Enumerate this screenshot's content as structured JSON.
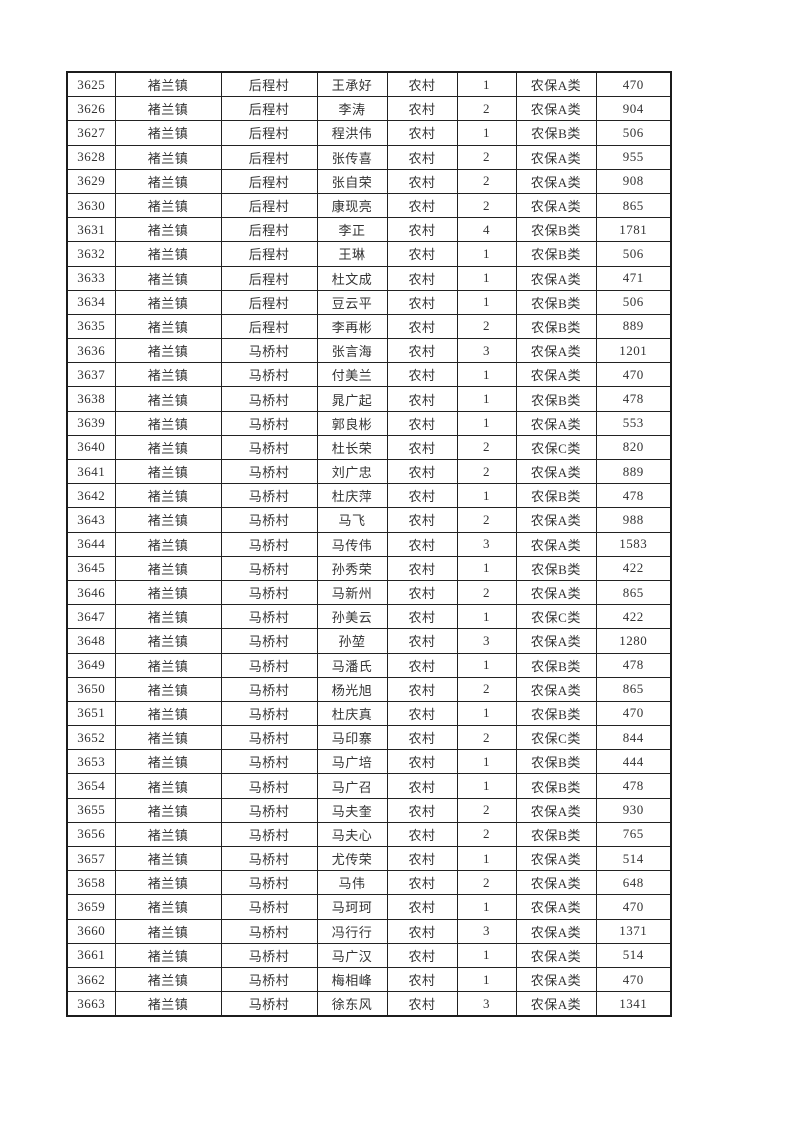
{
  "colors": {
    "background": "#ffffff",
    "border": "#1c1c1c",
    "text": "#333333"
  },
  "table": {
    "column_names": [
      "serial-no",
      "town",
      "village",
      "person-name",
      "household-type",
      "person-count",
      "insurance-class",
      "amount"
    ],
    "rows": [
      [
        "3625",
        "褚兰镇",
        "后程村",
        "王承好",
        "农村",
        "1",
        "农保A类",
        "470"
      ],
      [
        "3626",
        "褚兰镇",
        "后程村",
        "李涛",
        "农村",
        "2",
        "农保A类",
        "904"
      ],
      [
        "3627",
        "褚兰镇",
        "后程村",
        "程洪伟",
        "农村",
        "1",
        "农保B类",
        "506"
      ],
      [
        "3628",
        "褚兰镇",
        "后程村",
        "张传喜",
        "农村",
        "2",
        "农保A类",
        "955"
      ],
      [
        "3629",
        "褚兰镇",
        "后程村",
        "张自荣",
        "农村",
        "2",
        "农保A类",
        "908"
      ],
      [
        "3630",
        "褚兰镇",
        "后程村",
        "康现亮",
        "农村",
        "2",
        "农保A类",
        "865"
      ],
      [
        "3631",
        "褚兰镇",
        "后程村",
        "李正",
        "农村",
        "4",
        "农保B类",
        "1781"
      ],
      [
        "3632",
        "褚兰镇",
        "后程村",
        "王琳",
        "农村",
        "1",
        "农保B类",
        "506"
      ],
      [
        "3633",
        "褚兰镇",
        "后程村",
        "杜文成",
        "农村",
        "1",
        "农保A类",
        "471"
      ],
      [
        "3634",
        "褚兰镇",
        "后程村",
        "豆云平",
        "农村",
        "1",
        "农保B类",
        "506"
      ],
      [
        "3635",
        "褚兰镇",
        "后程村",
        "李再彬",
        "农村",
        "2",
        "农保B类",
        "889"
      ],
      [
        "3636",
        "褚兰镇",
        "马桥村",
        "张言海",
        "农村",
        "3",
        "农保A类",
        "1201"
      ],
      [
        "3637",
        "褚兰镇",
        "马桥村",
        "付美兰",
        "农村",
        "1",
        "农保A类",
        "470"
      ],
      [
        "3638",
        "褚兰镇",
        "马桥村",
        "晁广起",
        "农村",
        "1",
        "农保B类",
        "478"
      ],
      [
        "3639",
        "褚兰镇",
        "马桥村",
        "郭良彬",
        "农村",
        "1",
        "农保A类",
        "553"
      ],
      [
        "3640",
        "褚兰镇",
        "马桥村",
        "杜长荣",
        "农村",
        "2",
        "农保C类",
        "820"
      ],
      [
        "3641",
        "褚兰镇",
        "马桥村",
        "刘广忠",
        "农村",
        "2",
        "农保A类",
        "889"
      ],
      [
        "3642",
        "褚兰镇",
        "马桥村",
        "杜庆萍",
        "农村",
        "1",
        "农保B类",
        "478"
      ],
      [
        "3643",
        "褚兰镇",
        "马桥村",
        "马飞",
        "农村",
        "2",
        "农保A类",
        "988"
      ],
      [
        "3644",
        "褚兰镇",
        "马桥村",
        "马传伟",
        "农村",
        "3",
        "农保A类",
        "1583"
      ],
      [
        "3645",
        "褚兰镇",
        "马桥村",
        "孙秀荣",
        "农村",
        "1",
        "农保B类",
        "422"
      ],
      [
        "3646",
        "褚兰镇",
        "马桥村",
        "马新州",
        "农村",
        "2",
        "农保A类",
        "865"
      ],
      [
        "3647",
        "褚兰镇",
        "马桥村",
        "孙美云",
        "农村",
        "1",
        "农保C类",
        "422"
      ],
      [
        "3648",
        "褚兰镇",
        "马桥村",
        "孙堃",
        "农村",
        "3",
        "农保A类",
        "1280"
      ],
      [
        "3649",
        "褚兰镇",
        "马桥村",
        "马潘氏",
        "农村",
        "1",
        "农保B类",
        "478"
      ],
      [
        "3650",
        "褚兰镇",
        "马桥村",
        "杨光旭",
        "农村",
        "2",
        "农保A类",
        "865"
      ],
      [
        "3651",
        "褚兰镇",
        "马桥村",
        "杜庆真",
        "农村",
        "1",
        "农保B类",
        "470"
      ],
      [
        "3652",
        "褚兰镇",
        "马桥村",
        "马印寨",
        "农村",
        "2",
        "农保C类",
        "844"
      ],
      [
        "3653",
        "褚兰镇",
        "马桥村",
        "马广培",
        "农村",
        "1",
        "农保B类",
        "444"
      ],
      [
        "3654",
        "褚兰镇",
        "马桥村",
        "马广召",
        "农村",
        "1",
        "农保B类",
        "478"
      ],
      [
        "3655",
        "褚兰镇",
        "马桥村",
        "马夫奎",
        "农村",
        "2",
        "农保A类",
        "930"
      ],
      [
        "3656",
        "褚兰镇",
        "马桥村",
        "马夫心",
        "农村",
        "2",
        "农保B类",
        "765"
      ],
      [
        "3657",
        "褚兰镇",
        "马桥村",
        "尤传荣",
        "农村",
        "1",
        "农保A类",
        "514"
      ],
      [
        "3658",
        "褚兰镇",
        "马桥村",
        "马伟",
        "农村",
        "2",
        "农保A类",
        "648"
      ],
      [
        "3659",
        "褚兰镇",
        "马桥村",
        "马珂珂",
        "农村",
        "1",
        "农保A类",
        "470"
      ],
      [
        "3660",
        "褚兰镇",
        "马桥村",
        "冯行行",
        "农村",
        "3",
        "农保A类",
        "1371"
      ],
      [
        "3661",
        "褚兰镇",
        "马桥村",
        "马广汉",
        "农村",
        "1",
        "农保A类",
        "514"
      ],
      [
        "3662",
        "褚兰镇",
        "马桥村",
        "梅相峰",
        "农村",
        "1",
        "农保A类",
        "470"
      ],
      [
        "3663",
        "褚兰镇",
        "马桥村",
        "徐东风",
        "农村",
        "3",
        "农保A类",
        "1341"
      ]
    ]
  }
}
